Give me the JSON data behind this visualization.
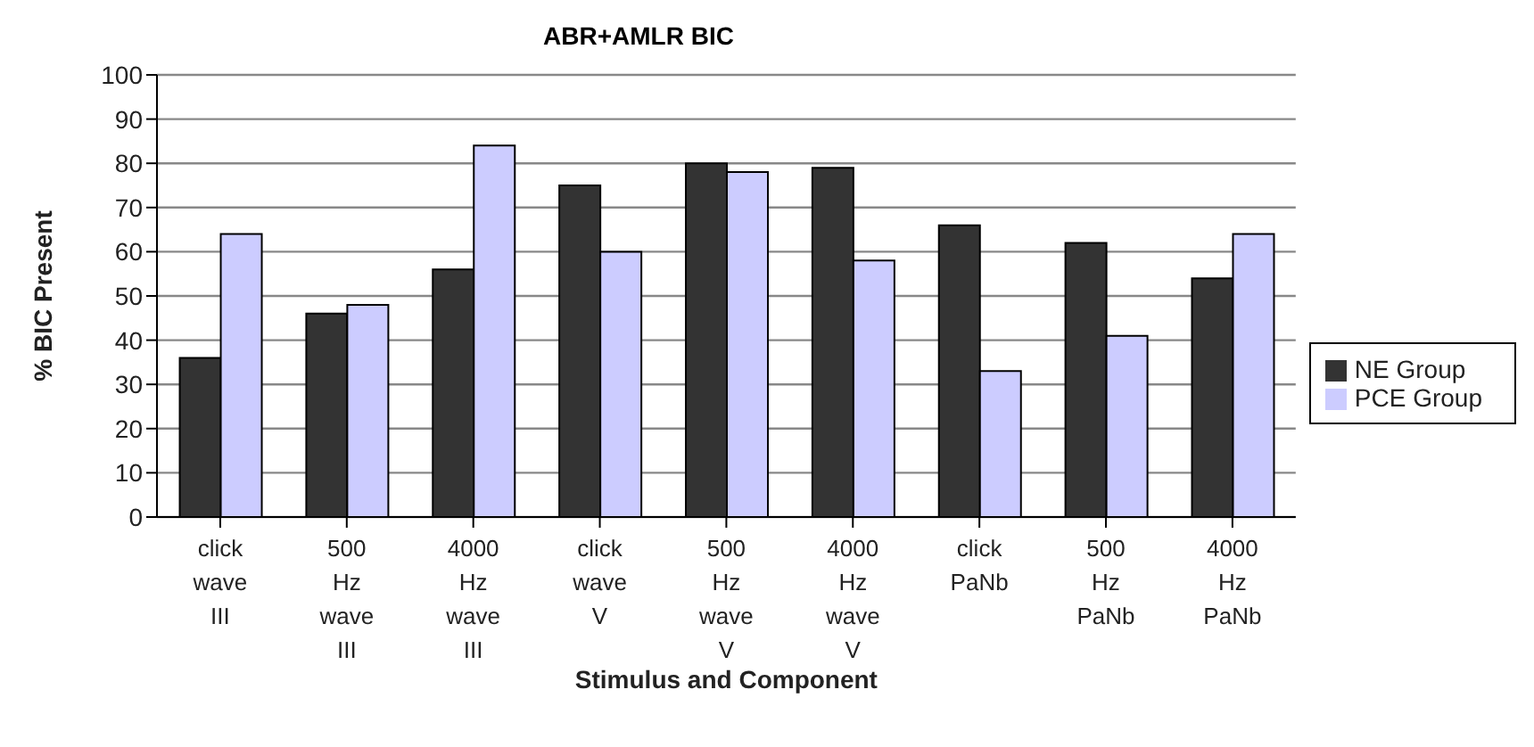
{
  "chart_data": {
    "type": "bar",
    "title": "ABR+AMLR BIC",
    "xlabel": "Stimulus and Component",
    "ylabel": "% BIC Present",
    "categories": [
      "click\nwave\nIII",
      "500\nHz\nwave\nIII",
      "4000\nHz\nwave\nIII",
      "click\nwave\nV",
      "500\nHz\nwave\nV",
      "4000\nHz\nwave\nV",
      "click\nPaNb",
      "500\nHz\nPaNb",
      "4000\nHz\nPaNb"
    ],
    "series": [
      {
        "name": "NE Group",
        "color": "#333333",
        "values": [
          36,
          46,
          56,
          75,
          80,
          79,
          66,
          62,
          54
        ]
      },
      {
        "name": "PCE Group",
        "color": "#ccccff",
        "values": [
          64,
          48,
          84,
          60,
          78,
          58,
          33,
          41,
          64
        ]
      }
    ],
    "ylim": [
      0,
      100
    ],
    "yticks": [
      0,
      10,
      20,
      30,
      40,
      50,
      60,
      70,
      80,
      90,
      100
    ],
    "grid": "y",
    "legend": "right"
  }
}
